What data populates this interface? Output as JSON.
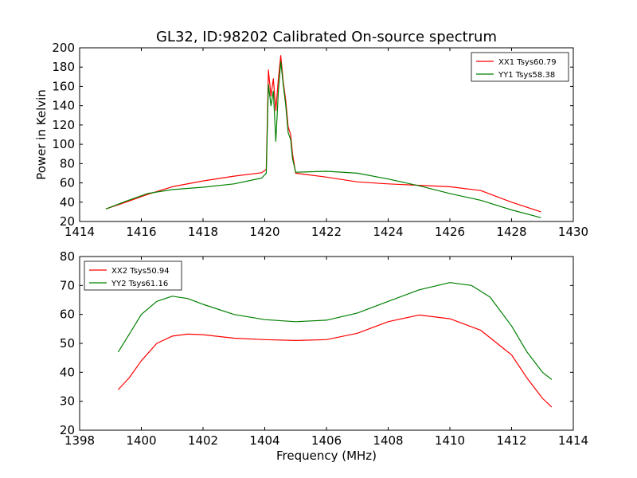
{
  "chart_data": [
    {
      "type": "line",
      "title": "GL32, ID:98202 Calibrated On-source spectrum",
      "xlabel": "",
      "ylabel": "Power in Kelvin",
      "xlim": [
        1414,
        1430
      ],
      "ylim": [
        20,
        200
      ],
      "xticks": [
        1414,
        1416,
        1418,
        1420,
        1422,
        1424,
        1426,
        1428,
        1430
      ],
      "yticks": [
        20,
        40,
        60,
        80,
        100,
        120,
        140,
        160,
        180,
        200
      ],
      "grid": false,
      "legend": "top-right",
      "series": [
        {
          "name": "XX1 Tsys60.79",
          "color": "#ff0000",
          "points": [
            [
              1414.85,
              33
            ],
            [
              1415.5,
              40
            ],
            [
              1416.2,
              48
            ],
            [
              1417,
              56
            ],
            [
              1418,
              62
            ],
            [
              1419,
              67
            ],
            [
              1419.9,
              70.5
            ],
            [
              1420.05,
              74
            ],
            [
              1420.12,
              177
            ],
            [
              1420.2,
              150
            ],
            [
              1420.28,
              168
            ],
            [
              1420.36,
              135
            ],
            [
              1420.44,
              168
            ],
            [
              1420.52,
              192
            ],
            [
              1420.6,
              165
            ],
            [
              1420.68,
              145
            ],
            [
              1420.76,
              118
            ],
            [
              1420.84,
              110
            ],
            [
              1420.9,
              90
            ],
            [
              1421,
              70
            ],
            [
              1422,
              66
            ],
            [
              1423,
              61
            ],
            [
              1424,
              59
            ],
            [
              1425,
              57.5
            ],
            [
              1426,
              56
            ],
            [
              1427,
              52
            ],
            [
              1428,
              40
            ],
            [
              1428.95,
              30
            ]
          ]
        },
        {
          "name": "YY1 Tsys58.38",
          "color": "#008000",
          "points": [
            [
              1414.85,
              33
            ],
            [
              1415.5,
              41
            ],
            [
              1416.2,
              49
            ],
            [
              1417,
              53
            ],
            [
              1418,
              55.5
            ],
            [
              1419,
              59
            ],
            [
              1419.9,
              65
            ],
            [
              1420.05,
              70
            ],
            [
              1420.12,
              162
            ],
            [
              1420.2,
              140
            ],
            [
              1420.28,
              155
            ],
            [
              1420.36,
              103
            ],
            [
              1420.44,
              155
            ],
            [
              1420.52,
              186
            ],
            [
              1420.6,
              162
            ],
            [
              1420.68,
              140
            ],
            [
              1420.76,
              112
            ],
            [
              1420.84,
              105
            ],
            [
              1420.9,
              85
            ],
            [
              1421,
              71
            ],
            [
              1422,
              72
            ],
            [
              1423,
              70
            ],
            [
              1424,
              64
            ],
            [
              1425,
              57
            ],
            [
              1426,
              49
            ],
            [
              1427,
              42
            ],
            [
              1428,
              32
            ],
            [
              1428.95,
              24
            ]
          ]
        }
      ]
    },
    {
      "type": "line",
      "title": "",
      "xlabel": "Frequency (MHz)",
      "ylabel": "",
      "xlim": [
        1398,
        1414
      ],
      "ylim": [
        20,
        80
      ],
      "xticks": [
        1398,
        1400,
        1402,
        1404,
        1406,
        1408,
        1410,
        1412,
        1414
      ],
      "yticks": [
        20,
        30,
        40,
        50,
        60,
        70,
        80
      ],
      "grid": false,
      "legend": "top-left",
      "series": [
        {
          "name": "XX2 Tsys50.94",
          "color": "#ff0000",
          "points": [
            [
              1399.25,
              34
            ],
            [
              1399.6,
              38
            ],
            [
              1400,
              44
            ],
            [
              1400.5,
              50
            ],
            [
              1401,
              52.5
            ],
            [
              1401.5,
              53.2
            ],
            [
              1402,
              53
            ],
            [
              1403,
              51.8
            ],
            [
              1404,
              51.3
            ],
            [
              1405,
              51
            ],
            [
              1406,
              51.3
            ],
            [
              1407,
              53.5
            ],
            [
              1408,
              57.5
            ],
            [
              1409,
              59.8
            ],
            [
              1410,
              58.5
            ],
            [
              1411,
              54.5
            ],
            [
              1412,
              46
            ],
            [
              1412.5,
              38
            ],
            [
              1413,
              31
            ],
            [
              1413.3,
              28
            ]
          ]
        },
        {
          "name": "YY2 Tsys61.16",
          "color": "#008000",
          "points": [
            [
              1399.25,
              47
            ],
            [
              1399.6,
              53
            ],
            [
              1400,
              60
            ],
            [
              1400.5,
              64.5
            ],
            [
              1401,
              66.3
            ],
            [
              1401.5,
              65.5
            ],
            [
              1402,
              63.5
            ],
            [
              1403,
              60
            ],
            [
              1404,
              58.2
            ],
            [
              1405,
              57.5
            ],
            [
              1406,
              58
            ],
            [
              1407,
              60.5
            ],
            [
              1408,
              64.5
            ],
            [
              1409,
              68.5
            ],
            [
              1410,
              71
            ],
            [
              1410.7,
              70
            ],
            [
              1411.3,
              66
            ],
            [
              1412,
              56
            ],
            [
              1412.5,
              47
            ],
            [
              1413,
              40
            ],
            [
              1413.3,
              37.5
            ]
          ]
        }
      ]
    }
  ]
}
